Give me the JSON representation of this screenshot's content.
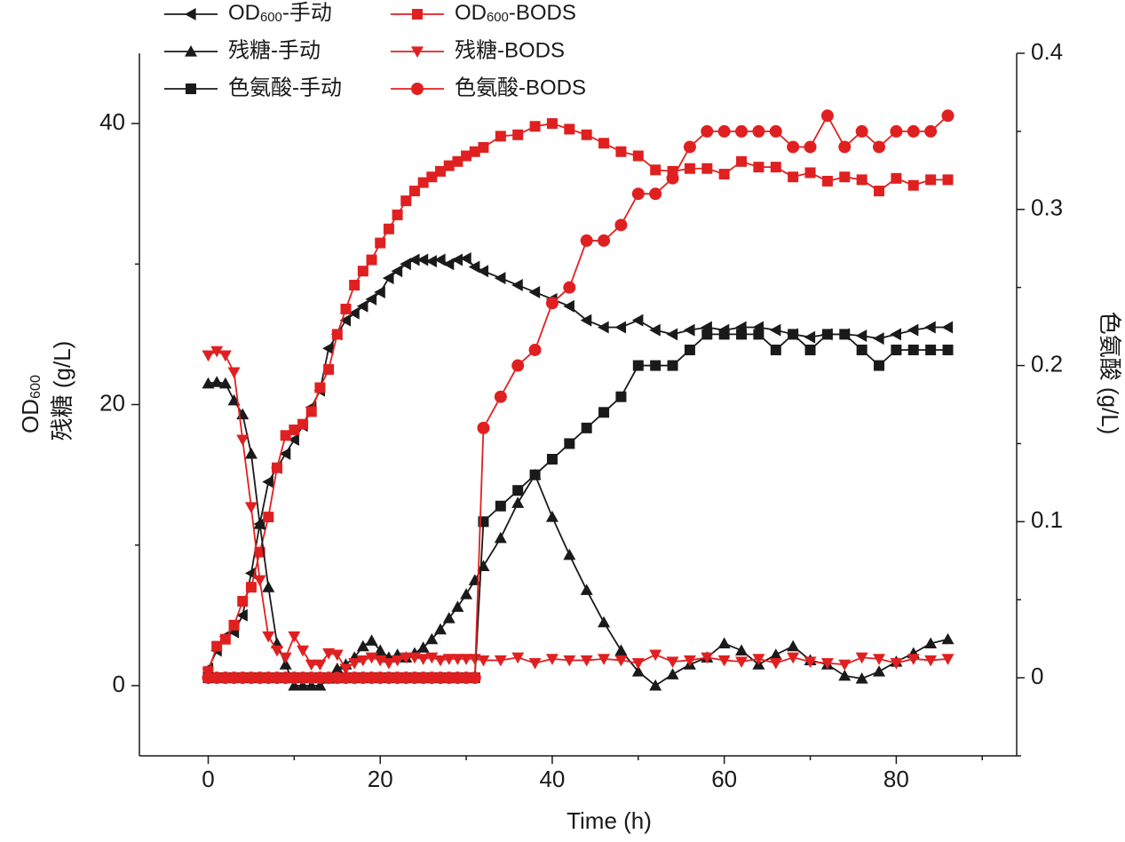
{
  "chart_data": {
    "type": "line",
    "xlabel": "Time (h)",
    "ylabel": [
      "OD600",
      "残糖 (g/L)"
    ],
    "y2label": "色氨酸 (g/L)",
    "xlim": [
      -8,
      94
    ],
    "xticks": [
      0,
      20,
      40,
      60,
      80
    ],
    "ylim": [
      -5,
      45
    ],
    "yticks": [
      0,
      20,
      40
    ],
    "y2lim": [
      -0.05,
      0.4
    ],
    "y2ticks": [
      0,
      0.1,
      0.2,
      0.3,
      0.4
    ],
    "legend": "upper left",
    "x": [
      0,
      1,
      2,
      3,
      4,
      5,
      6,
      7,
      8,
      9,
      10,
      11,
      12,
      13,
      14,
      15,
      16,
      17,
      18,
      19,
      20,
      21,
      22,
      23,
      24,
      25,
      26,
      27,
      28,
      29,
      30,
      31,
      32,
      34,
      36,
      38,
      40,
      42,
      44,
      46,
      48,
      50,
      52,
      54,
      56,
      58,
      60,
      62,
      64,
      66,
      68,
      70,
      72,
      74,
      76,
      78,
      80,
      82,
      84,
      86
    ],
    "series": [
      {
        "name": "OD600-手动",
        "color": "#1a1a1a",
        "marker": "triangle-left",
        "values": [
          1.2,
          2.5,
          3.5,
          3.8,
          5,
          8,
          11.5,
          14.5,
          15.5,
          16.5,
          17.5,
          18.5,
          19.8,
          21,
          24,
          25,
          26,
          26.5,
          27,
          27.5,
          28,
          29,
          29.5,
          30,
          30.3,
          30.3,
          30.2,
          30.3,
          30,
          30.3,
          30.4,
          29.8,
          29.5,
          29,
          28.5,
          28,
          27.5,
          27,
          26,
          25.5,
          25.5,
          26,
          25.3,
          25,
          25.3,
          25.5,
          25.3,
          25.5,
          25.5,
          25.3,
          25,
          24.8,
          25,
          25,
          24.9,
          24.7,
          25,
          25.3,
          25.5,
          25.5
        ]
      },
      {
        "name": "OD600-BODS",
        "color": "#e02020",
        "marker": "square",
        "values": [
          1,
          2.8,
          3.3,
          4.3,
          6,
          7,
          9.5,
          12,
          15.5,
          17.8,
          18.2,
          18.6,
          19.5,
          21.2,
          22.5,
          25,
          26.8,
          28.5,
          29.5,
          30.3,
          31.5,
          32.5,
          33.5,
          34.5,
          35.2,
          35.8,
          36.2,
          36.6,
          37,
          37.3,
          37.7,
          38,
          38.3,
          39.1,
          39.2,
          39.8,
          40,
          39.6,
          39.2,
          38.6,
          38,
          37.7,
          36.7,
          36.6,
          36.8,
          36.8,
          36.4,
          37.3,
          36.9,
          36.9,
          36.2,
          36.5,
          35.9,
          36.2,
          36,
          35.2,
          36.1,
          35.6,
          36,
          36
        ]
      },
      {
        "name": "残糖-手动",
        "color": "#1a1a1a",
        "marker": "triangle-up",
        "values": [
          21.5,
          21.6,
          21.5,
          20.3,
          19.3,
          16.5,
          11.5,
          7,
          3,
          1.5,
          0,
          0,
          0,
          0,
          0.5,
          1.2,
          1.5,
          2,
          2.8,
          3.2,
          2.5,
          2,
          2.2,
          2,
          2.3,
          2.7,
          3.3,
          4,
          4.8,
          5.6,
          6.5,
          7.5,
          8.5,
          10.5,
          13,
          15,
          12,
          9.3,
          6.8,
          4.5,
          2.5,
          1,
          0,
          0.8,
          1.5,
          2,
          3,
          2.5,
          1.5,
          2.2,
          2.8,
          1.8,
          1.5,
          0.7,
          0.5,
          1,
          1.7,
          2.3,
          3,
          3.3
        ]
      },
      {
        "name": "残糖-BODS",
        "color": "#e02020",
        "marker": "triangle-down",
        "values": [
          23.5,
          23.8,
          23.5,
          22.3,
          17.5,
          12.7,
          7.5,
          3.5,
          2.5,
          2,
          3.5,
          2.5,
          1.5,
          1.5,
          2.3,
          2.2,
          1.2,
          1.6,
          1.8,
          2,
          1.8,
          1.6,
          1.8,
          2,
          2,
          1.9,
          2,
          1.8,
          1.9,
          1.9,
          1.9,
          1.9,
          1.8,
          1.8,
          2,
          1.6,
          1.9,
          1.8,
          1.8,
          1.9,
          1.8,
          1.6,
          2.2,
          1.7,
          1.8,
          2,
          1.8,
          1.7,
          1.9,
          1.6,
          2,
          1.7,
          1.6,
          1.5,
          2,
          1.9,
          1.6,
          1.9,
          1.8,
          1.9
        ]
      },
      {
        "name": "色氨酸-手动",
        "color": "#1a1a1a",
        "marker": "square",
        "axis": "y2",
        "values": [
          0,
          0,
          0,
          0,
          0,
          0,
          0,
          0,
          0,
          0,
          0,
          0,
          0,
          0,
          0,
          0,
          0,
          0,
          0,
          0,
          0,
          0,
          0,
          0,
          0,
          0,
          0,
          0,
          0,
          0,
          0,
          0,
          0.1,
          0.11,
          0.12,
          0.13,
          0.14,
          0.15,
          0.16,
          0.17,
          0.18,
          0.2,
          0.2,
          0.2,
          0.21,
          0.22,
          0.22,
          0.22,
          0.22,
          0.21,
          0.22,
          0.21,
          0.22,
          0.22,
          0.21,
          0.2,
          0.21,
          0.21,
          0.21,
          0.21
        ]
      },
      {
        "name": "色氨酸-BODS",
        "color": "#e02020",
        "marker": "circle",
        "axis": "y2",
        "values": [
          0,
          0,
          0,
          0,
          0,
          0,
          0,
          0,
          0,
          0,
          0,
          0,
          0,
          0,
          0,
          0,
          0,
          0,
          0,
          0,
          0,
          0,
          0,
          0,
          0,
          0,
          0,
          0,
          0,
          0,
          0,
          0,
          0.16,
          0.18,
          0.2,
          0.21,
          0.24,
          0.25,
          0.28,
          0.28,
          0.29,
          0.31,
          0.31,
          0.32,
          0.34,
          0.35,
          0.35,
          0.35,
          0.35,
          0.35,
          0.34,
          0.34,
          0.36,
          0.34,
          0.35,
          0.34,
          0.35,
          0.35,
          0.35,
          0.36
        ]
      }
    ]
  }
}
